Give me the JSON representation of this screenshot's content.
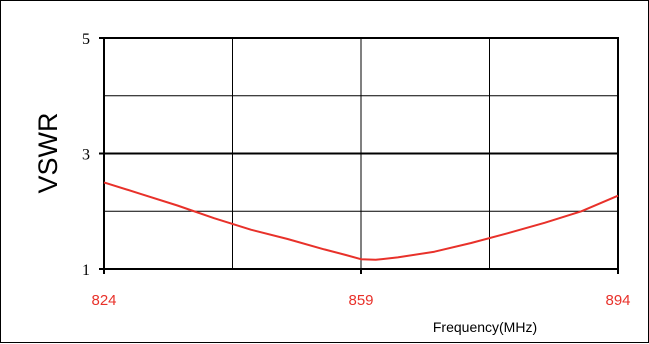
{
  "chart_data": {
    "type": "line",
    "title": "",
    "xlabel": "Frequency(MHz)",
    "ylabel": "VSWR",
    "xlim": [
      824,
      894
    ],
    "ylim": [
      1,
      5
    ],
    "x_tick_labels": [
      "824",
      "859",
      "894"
    ],
    "y_tick_labels": [
      "5",
      "3",
      "1"
    ],
    "x_tick_values": [
      824,
      859,
      894
    ],
    "y_tick_values": [
      5,
      3,
      1
    ],
    "x_grid_values": [
      824,
      841.5,
      859,
      876.5,
      894
    ],
    "y_grid_values": [
      1,
      2,
      3,
      4,
      5
    ],
    "grid": true,
    "legend": "none",
    "colors": {
      "series": "#e8312a",
      "x_tick_labels": "#e8312a",
      "grid": "#000000"
    },
    "series": [
      {
        "x": [
          824,
          829,
          834,
          839,
          844,
          849,
          854,
          857,
          859,
          861,
          864,
          869,
          874,
          879,
          884,
          889,
          894
        ],
        "y": [
          2.5,
          2.3,
          2.1,
          1.88,
          1.68,
          1.52,
          1.34,
          1.24,
          1.17,
          1.16,
          1.2,
          1.3,
          1.45,
          1.62,
          1.8,
          2.0,
          2.27
        ]
      }
    ]
  }
}
